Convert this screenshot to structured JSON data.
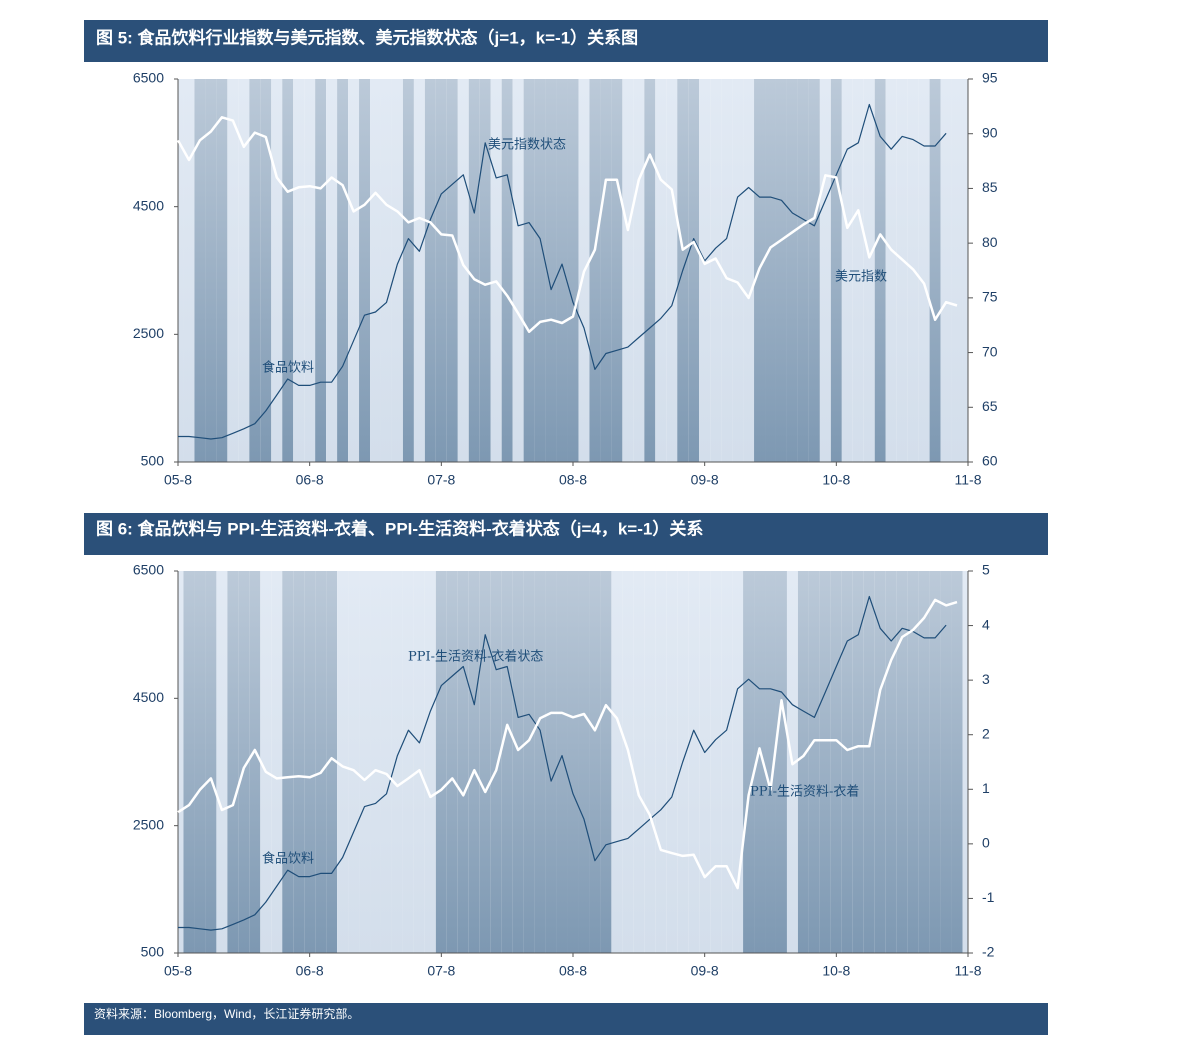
{
  "chart_data": [
    {
      "type": "line",
      "title": "图 5: 食品饮料行业指数与美元指数、美元指数状态（j=1，k=-1）关系图",
      "categories": [
        "05-8",
        null,
        null,
        null,
        null,
        null,
        null,
        null,
        null,
        null,
        null,
        null,
        "06-8",
        null,
        null,
        null,
        null,
        null,
        null,
        null,
        null,
        null,
        null,
        null,
        "07-8",
        null,
        null,
        null,
        null,
        null,
        null,
        null,
        null,
        null,
        null,
        null,
        "08-8",
        null,
        null,
        null,
        null,
        null,
        null,
        null,
        null,
        null,
        null,
        null,
        "09-8",
        null,
        null,
        null,
        null,
        null,
        null,
        null,
        null,
        null,
        null,
        null,
        "10-8",
        null,
        null,
        null,
        null,
        null,
        null,
        null,
        null,
        null,
        null,
        null,
        "11-8"
      ],
      "ylim": [
        500,
        6500
      ],
      "yticks": [
        500,
        2500,
        4500,
        6500
      ],
      "y2lim": [
        60,
        95
      ],
      "y2ticks": [
        60,
        65,
        70,
        75,
        80,
        85,
        90,
        95
      ],
      "state": {
        "name": "美元指数状态",
        "color": "#7f9ab3",
        "values": [
          0,
          0,
          1,
          1,
          1,
          0,
          0,
          1,
          1,
          0,
          1,
          0,
          0,
          1,
          0,
          1,
          0,
          1,
          0,
          0,
          0,
          1,
          0,
          1,
          1,
          1,
          0,
          1,
          1,
          0,
          1,
          0,
          1,
          1,
          1,
          1,
          1,
          0,
          1,
          1,
          1,
          0,
          0,
          1,
          0,
          0,
          1,
          1,
          0,
          0,
          0,
          0,
          0,
          1,
          1,
          1,
          1,
          1,
          1,
          0,
          1,
          0,
          0,
          0,
          1,
          0,
          0,
          0,
          0,
          1,
          0,
          0,
          0
        ]
      },
      "series": [
        {
          "name": "食品饮料",
          "color": "#1f4e79",
          "values": [
            900,
            900,
            880,
            860,
            880,
            950,
            1020,
            1100,
            1300,
            1550,
            1800,
            1700,
            1700,
            1750,
            1750,
            2000,
            2400,
            2800,
            2850,
            3000,
            3600,
            4000,
            3800,
            4300,
            4700,
            4850,
            5000,
            4400,
            5500,
            4950,
            5000,
            4200,
            4250,
            4000,
            3200,
            3600,
            3000,
            2600,
            1950,
            2200,
            2250,
            2300,
            2450,
            2600,
            2750,
            2950,
            3500,
            4000,
            3650,
            3850,
            4000,
            4650,
            4800,
            4650,
            4650,
            4600,
            4400,
            4300,
            4200,
            4600,
            5000,
            5400,
            5500,
            6100,
            5600,
            5400,
            5600,
            5550,
            5450,
            5450,
            5650,
            null,
            null
          ]
        },
        {
          "name": "美元指数",
          "color": "#ffffff",
          "axis": "y2",
          "values": [
            89.4,
            87.6,
            89.4,
            90.2,
            91.5,
            91.2,
            88.8,
            90.1,
            89.7,
            86,
            84.7,
            85.1,
            85.2,
            85,
            86,
            85.3,
            82.9,
            83.5,
            84.6,
            83.5,
            82.9,
            81.9,
            82.3,
            81.9,
            80.8,
            80.7,
            78,
            76.7,
            76.2,
            76.5,
            75.2,
            73.6,
            71.9,
            72.8,
            73,
            72.7,
            73.3,
            77.4,
            79.4,
            85.8,
            85.8,
            81.2,
            85.8,
            88.1,
            85.8,
            84.9,
            79.4,
            80.1,
            78.1,
            78.6,
            76.8,
            76.4,
            75,
            77.7,
            79.6,
            80.3,
            81,
            81.7,
            82.3,
            86.2,
            86,
            81.4,
            83,
            78.7,
            80.8,
            79.4,
            78.5,
            77.6,
            76.3,
            73,
            74.6,
            74.3,
            null
          ]
        }
      ]
    },
    {
      "type": "line",
      "title": "图 6: 食品饮料与 PPI-生活资料-衣着、PPI-生活资料-衣着状态（j=4，k=-1）关系",
      "categories": [
        "05-8",
        null,
        null,
        null,
        null,
        null,
        null,
        null,
        null,
        null,
        null,
        null,
        "06-8",
        null,
        null,
        null,
        null,
        null,
        null,
        null,
        null,
        null,
        null,
        null,
        "07-8",
        null,
        null,
        null,
        null,
        null,
        null,
        null,
        null,
        null,
        null,
        null,
        "08-8",
        null,
        null,
        null,
        null,
        null,
        null,
        null,
        null,
        null,
        null,
        null,
        "09-8",
        null,
        null,
        null,
        null,
        null,
        null,
        null,
        null,
        null,
        null,
        null,
        "10-8",
        null,
        null,
        null,
        null,
        null,
        null,
        null,
        null,
        null,
        null,
        null,
        "11-8"
      ],
      "ylim": [
        500,
        6500
      ],
      "yticks": [
        500,
        2500,
        4500,
        6500
      ],
      "y2lim": [
        -2,
        5
      ],
      "y2ticks": [
        -2,
        -1,
        0,
        1,
        2,
        3,
        4,
        5
      ],
      "state": {
        "name": "PPI-生活资料-衣着状态",
        "color": "#7f9ab3",
        "values": [
          0,
          1,
          1,
          1,
          0,
          1,
          1,
          1,
          0,
          0,
          1,
          1,
          1,
          1,
          1,
          0,
          0,
          0,
          0,
          0,
          0,
          0,
          0,
          0,
          1,
          1,
          1,
          1,
          1,
          1,
          1,
          1,
          1,
          1,
          1,
          1,
          1,
          1,
          1,
          1,
          0,
          0,
          0,
          0,
          0,
          0,
          0,
          0,
          0,
          0,
          0,
          0,
          1,
          1,
          1,
          1,
          0,
          1,
          1,
          1,
          1,
          1,
          1,
          1,
          1,
          1,
          1,
          1,
          1,
          1,
          1,
          1,
          0
        ]
      },
      "series": [
        {
          "name": "食品饮料",
          "color": "#1f4e79",
          "values": [
            900,
            900,
            880,
            860,
            880,
            950,
            1020,
            1100,
            1300,
            1550,
            1800,
            1700,
            1700,
            1750,
            1750,
            2000,
            2400,
            2800,
            2850,
            3000,
            3600,
            4000,
            3800,
            4300,
            4700,
            4850,
            5000,
            4400,
            5500,
            4950,
            5000,
            4200,
            4250,
            4000,
            3200,
            3600,
            3000,
            2600,
            1950,
            2200,
            2250,
            2300,
            2450,
            2600,
            2750,
            2950,
            3500,
            4000,
            3650,
            3850,
            4000,
            4650,
            4800,
            4650,
            4650,
            4600,
            4400,
            4300,
            4200,
            4600,
            5000,
            5400,
            5500,
            6100,
            5600,
            5400,
            5600,
            5550,
            5450,
            5450,
            5650,
            null,
            null
          ]
        },
        {
          "name": "PPI-生活资料-衣着",
          "color": "#ffffff",
          "axis": "y2",
          "values": [
            0.58,
            0.71,
            0.99,
            1.2,
            0.62,
            0.71,
            1.39,
            1.72,
            1.32,
            1.2,
            1.22,
            1.24,
            1.22,
            1.3,
            1.57,
            1.42,
            1.35,
            1.17,
            1.35,
            1.28,
            1.06,
            1.2,
            1.35,
            0.86,
            0.99,
            1.2,
            0.89,
            1.35,
            0.95,
            1.35,
            2.18,
            1.72,
            1.9,
            2.3,
            2.4,
            2.4,
            2.32,
            2.38,
            2.08,
            2.54,
            2.3,
            1.72,
            0.89,
            0.53,
            -0.11,
            -0.17,
            -0.22,
            -0.2,
            -0.61,
            -0.41,
            -0.41,
            -0.81,
            0.89,
            1.75,
            0.99,
            2.63,
            1.46,
            1.61,
            1.9,
            1.9,
            1.9,
            1.72,
            1.79,
            1.79,
            2.82,
            3.37,
            3.79,
            3.92,
            4.14,
            4.47,
            4.37,
            4.43,
            null
          ]
        }
      ]
    }
  ],
  "source": "资料来源：Bloomberg，Wind，长江证券研究部。"
}
